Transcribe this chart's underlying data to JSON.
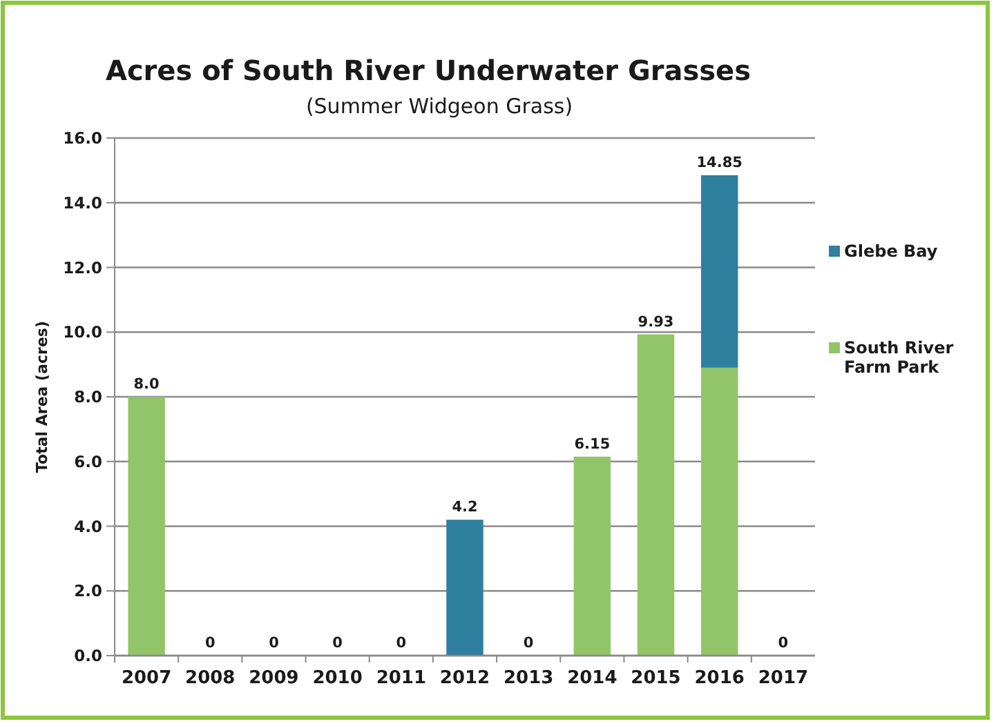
{
  "chart_data": {
    "type": "bar",
    "title": "Acres of South River Underwater Grasses",
    "subtitle": "(Summer Widgeon Grass)",
    "ylabel": "Total Area (acres)",
    "categories": [
      "2007",
      "2008",
      "2009",
      "2010",
      "2011",
      "2012",
      "2013",
      "2014",
      "2015",
      "2016",
      "2017"
    ],
    "stacked": true,
    "series": [
      {
        "name": "South River Farm Park",
        "color": "#92c46a",
        "values": [
          8.0,
          0,
          0,
          0,
          0,
          0,
          0,
          6.15,
          9.93,
          8.9,
          0
        ]
      },
      {
        "name": "Glebe Bay",
        "color": "#2f7f9f",
        "values": [
          0,
          0,
          0,
          0,
          0,
          4.2,
          0,
          0,
          0,
          5.95,
          0
        ]
      }
    ],
    "totals": [
      "8.0",
      "0",
      "0",
      "0",
      "0",
      "4.2",
      "0",
      "6.15",
      "9.93",
      "14.85",
      "0"
    ],
    "ylim": [
      0,
      16
    ],
    "yticks": [
      {
        "value": 0,
        "label": "0.0"
      },
      {
        "value": 2,
        "label": "2.0"
      },
      {
        "value": 4,
        "label": "4.0"
      },
      {
        "value": 6,
        "label": "6.0"
      },
      {
        "value": 8,
        "label": "8.0"
      },
      {
        "value": 10,
        "label": "10.0"
      },
      {
        "value": 12,
        "label": "12.0"
      },
      {
        "value": 14,
        "label": "14.0"
      },
      {
        "value": 16,
        "label": "16.0"
      }
    ],
    "grid": "y",
    "legend": "right"
  }
}
